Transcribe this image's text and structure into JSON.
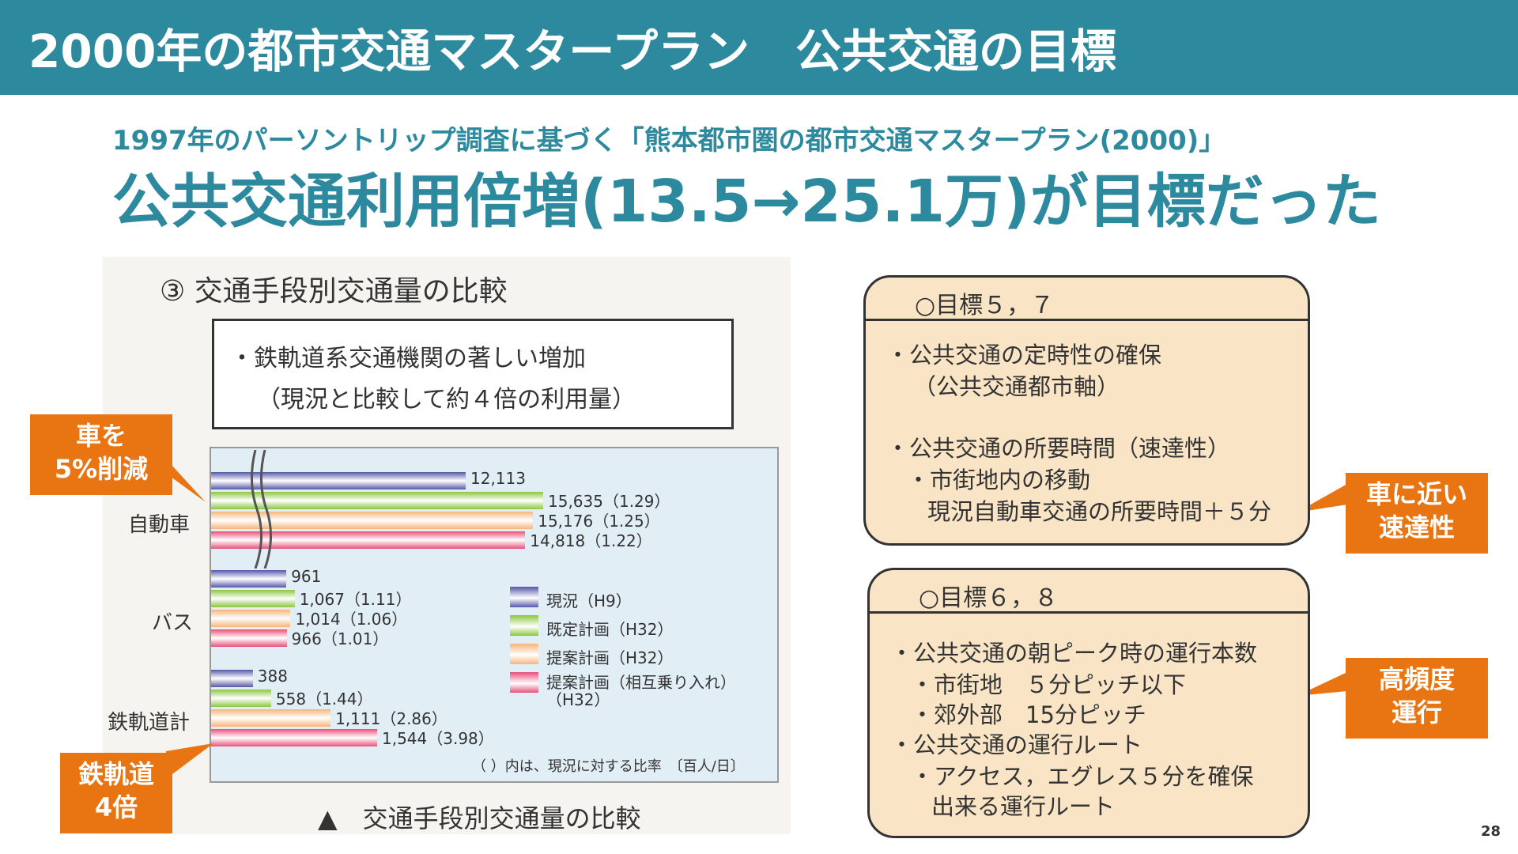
{
  "header": {
    "title": "2000年の都市交通マスタープラン　公共交通の目標"
  },
  "subtitle": "1997年のパーソントリップ調査に基づく「熊本都市圏の都市交通マスタープラン(2000)」",
  "headline": "公共交通利用倍増(13.5→25.1万)が目標だった",
  "chart": {
    "heading": "③ 交通手段別交通量の比較",
    "note_line1": "・鉄軌道系交通機関の著しい増加",
    "note_line2": "（現況と比較して約４倍の利用量）",
    "footnote": "（ ）内は、現況に対する比率　〔百人/日〕",
    "caption": "▲　交通手段別交通量の比較",
    "colors": {
      "current": "#5558a8",
      "existing_plan": "#8cc63f",
      "proposed_plan": "#f6b57a",
      "proposed_mutual": "#e8507a"
    }
  },
  "chart_data": {
    "type": "bar",
    "orientation": "horizontal",
    "categories": [
      "自動車",
      "バス",
      "鉄軌道計"
    ],
    "series": [
      {
        "name": "現況（H9）",
        "values": [
          12113,
          961,
          388
        ],
        "labels": [
          "12,113",
          "961",
          "388"
        ]
      },
      {
        "name": "既定計画（H32）",
        "values": [
          15635,
          1067,
          558
        ],
        "labels": [
          "15,635（1.29）",
          "1,067（1.11）",
          "558（1.44）"
        ]
      },
      {
        "name": "提案計画（H32）",
        "values": [
          15176,
          1014,
          1111
        ],
        "labels": [
          "15,176（1.25）",
          "1,014（1.06）",
          "1,111（2.86）"
        ]
      },
      {
        "name": "提案計画（相互乗り入れ）（H32）",
        "values": [
          14818,
          966,
          1544
        ],
        "labels": [
          "14,818（1.22）",
          "966（1.01）",
          "1,544（3.98）"
        ]
      }
    ],
    "legend_placement": "right",
    "axis_break": "自動車"
  },
  "callouts": {
    "car": "車を\n5%削減",
    "rail": "鉄軌道\n4倍",
    "speed": "車に近い\n速達性",
    "frequency": "高頻度\n運行"
  },
  "goals": [
    {
      "title": "○目標５，７",
      "lines": [
        "・公共交通の定時性の確保",
        "（公共交通都市軸）",
        "・公共交通の所要時間（速達性）",
        "・市街地内の移動",
        "現況自動車交通の所要時間＋５分"
      ]
    },
    {
      "title": "○目標６，８",
      "lines": [
        "・公共交通の朝ピーク時の運行本数",
        "・市街地　５分ピッチ以下",
        "・郊外部　15分ピッチ",
        "・公共交通の運行ルート",
        "・アクセス，エグレス５分を確保",
        "出来る運行ルート"
      ]
    }
  ],
  "page_number": "28"
}
